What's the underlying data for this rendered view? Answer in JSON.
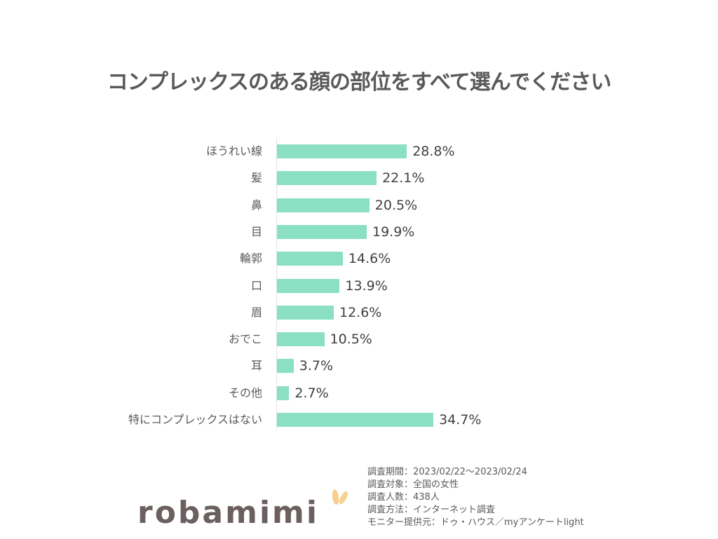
{
  "title": "コンプレックスのある顔の部位をすべて選んでください",
  "chart_data": {
    "type": "bar",
    "orientation": "horizontal",
    "title": "コンプレックスのある顔の部位をすべて選んでください",
    "categories": [
      "ほうれい線",
      "髪",
      "鼻",
      "目",
      "輪郭",
      "口",
      "眉",
      "おでこ",
      "耳",
      "その他",
      "特にコンプレックスはない"
    ],
    "values": [
      28.8,
      22.1,
      20.5,
      19.9,
      14.6,
      13.9,
      12.6,
      10.5,
      3.7,
      2.7,
      34.7
    ],
    "labels": [
      "28.8%",
      "22.1%",
      "20.5%",
      "19.9%",
      "14.6%",
      "13.9%",
      "12.6%",
      "10.5%",
      "3.7%",
      "2.7%",
      "34.7%"
    ],
    "unit": "%",
    "xlabel": "",
    "ylabel": "",
    "grid": false,
    "legend": null,
    "bar_color": "#8be0c4"
  },
  "survey": {
    "period": "調査期間：2023/02/22～2023/02/24",
    "target": "調査対象：全国の女性",
    "respondents": "調査人数：438人",
    "method": "調査方法：インターネット調査",
    "provider": "モニター提供元：ドゥ・ハウス／myアンケートlight"
  },
  "logo": {
    "text": "robamimi",
    "accent_color": "#f9cf90",
    "text_color": "#6b5f5f"
  }
}
